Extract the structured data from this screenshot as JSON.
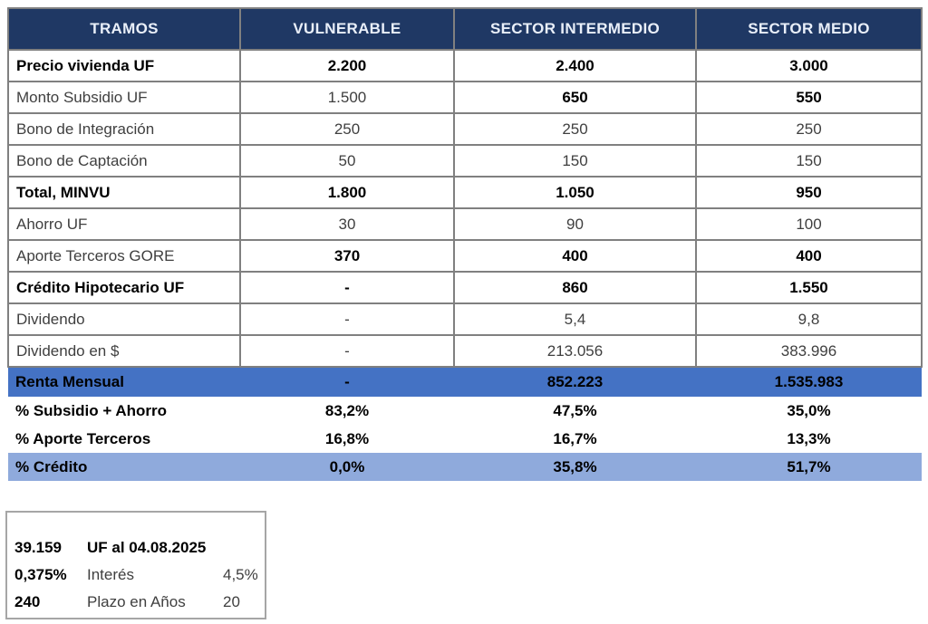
{
  "table": {
    "header": {
      "columns": [
        "TRAMOS",
        "VULNERABLE",
        "SECTOR INTERMEDIO",
        "SECTOR MEDIO"
      ]
    },
    "rows": [
      {
        "label": "Precio vivienda UF",
        "labelBold": true,
        "values": [
          "2.200",
          "2.400",
          "3.000"
        ],
        "valuesBold": [
          true,
          true,
          true
        ],
        "style": "bordered"
      },
      {
        "label": "Monto Subsidio UF",
        "labelBold": false,
        "values": [
          "1.500",
          "650",
          "550"
        ],
        "valuesBold": [
          false,
          true,
          true
        ],
        "style": "bordered"
      },
      {
        "label": "Bono de Integración",
        "labelBold": false,
        "values": [
          "250",
          "250",
          "250"
        ],
        "valuesBold": [
          false,
          false,
          false
        ],
        "style": "bordered"
      },
      {
        "label": "Bono de Captación",
        "labelBold": false,
        "values": [
          "50",
          "150",
          "150"
        ],
        "valuesBold": [
          false,
          false,
          false
        ],
        "style": "bordered"
      },
      {
        "label": "Total, MINVU",
        "labelBold": true,
        "values": [
          "1.800",
          "1.050",
          "950"
        ],
        "valuesBold": [
          true,
          true,
          true
        ],
        "style": "bordered"
      },
      {
        "label": "Ahorro UF",
        "labelBold": false,
        "values": [
          "30",
          "90",
          "100"
        ],
        "valuesBold": [
          false,
          false,
          false
        ],
        "style": "bordered"
      },
      {
        "label": "Aporte Terceros GORE",
        "labelBold": false,
        "values": [
          "370",
          "400",
          "400"
        ],
        "valuesBold": [
          true,
          true,
          true
        ],
        "style": "bordered"
      },
      {
        "label": "Crédito Hipotecario UF",
        "labelBold": true,
        "values": [
          "-",
          "860",
          "1.550"
        ],
        "valuesBold": [
          true,
          true,
          true
        ],
        "style": "bordered"
      },
      {
        "label": "Dividendo",
        "labelBold": false,
        "values": [
          "-",
          "5,4",
          "9,8"
        ],
        "valuesBold": [
          false,
          false,
          false
        ],
        "style": "bordered"
      },
      {
        "label": "Dividendo en $",
        "labelBold": false,
        "values": [
          "-",
          "213.056",
          "383.996"
        ],
        "valuesBold": [
          false,
          false,
          false
        ],
        "style": "bordered"
      },
      {
        "label": "Renta Mensual",
        "labelBold": true,
        "values": [
          "-",
          "852.223",
          "1.535.983"
        ],
        "valuesBold": [
          true,
          true,
          true
        ],
        "style": "band-blue"
      },
      {
        "label": "% Subsidio + Ahorro",
        "labelBold": true,
        "values": [
          "83,2%",
          "47,5%",
          "35,0%"
        ],
        "valuesBold": [
          true,
          true,
          true
        ],
        "style": "plain"
      },
      {
        "label": "% Aporte Terceros",
        "labelBold": true,
        "values": [
          "16,8%",
          "16,7%",
          "13,3%"
        ],
        "valuesBold": [
          true,
          true,
          true
        ],
        "style": "plain"
      },
      {
        "label": "% Crédito",
        "labelBold": true,
        "values": [
          "0,0%",
          "35,8%",
          "51,7%"
        ],
        "valuesBold": [
          true,
          true,
          true
        ],
        "style": "band-light"
      }
    ]
  },
  "footer_box": {
    "rows": [
      {
        "value": "39.159",
        "label": "UF al 04.08.2025",
        "extra": "",
        "valueBold": true,
        "labelBold": true
      },
      {
        "value": "0,375%",
        "label": "Interés",
        "extra": "4,5%",
        "valueBold": true,
        "labelBold": false
      },
      {
        "value": "240",
        "label": "Plazo en Años",
        "extra": "20",
        "valueBold": true,
        "labelBold": false
      }
    ]
  },
  "colors": {
    "header_bg": "#1F3864",
    "header_text": "#E9EFF9",
    "band_blue": "#4472C4",
    "band_light": "#8FAADC",
    "border": "#808080",
    "box_border": "#A6A6A6",
    "text_regular": "#3F3F3F",
    "text_bold": "#000000"
  }
}
